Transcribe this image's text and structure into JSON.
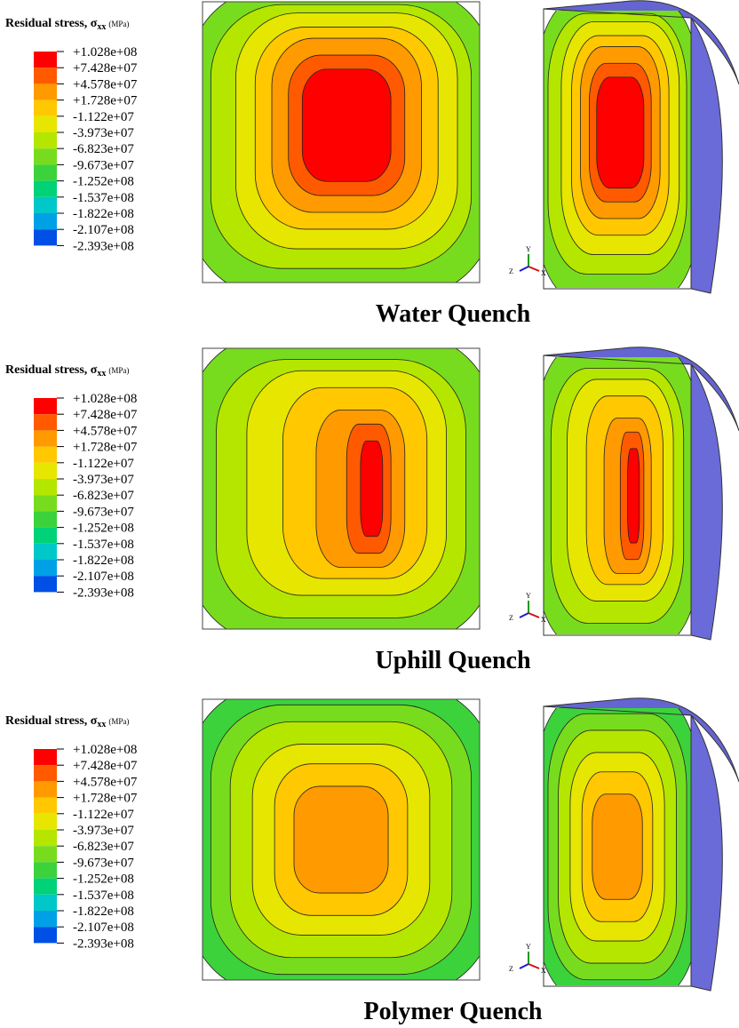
{
  "legend_colors": [
    "#ff0000",
    "#ff5a00",
    "#ff9a00",
    "#ffc800",
    "#e6e600",
    "#b4e600",
    "#78dc1e",
    "#3cd23c",
    "#00d278",
    "#00c8c8",
    "#00a0e6",
    "#0050e6",
    "#0000ff"
  ],
  "panels": [
    {
      "legend": {
        "title": "Residual stress, σ",
        "subscript": "xx",
        "unit": "(MPa)",
        "labels": [
          "+1.028e+08",
          "+7.428e+07",
          "+4.578e+07",
          "+1.728e+07",
          "-1.122e+07",
          "-3.973e+07",
          "-6.823e+07",
          "-9.673e+07",
          "-1.252e+08",
          "-1.537e+08",
          "-1.822e+08",
          "-2.107e+08",
          "-2.393e+08"
        ]
      },
      "axes": {
        "y": "Y",
        "z": "Z",
        "x": "X"
      },
      "caption": "Water Quench"
    },
    {
      "legend": {
        "title": "Residual stress, σ",
        "subscript": "xx",
        "unit": "(MPa)",
        "labels": [
          "+1.028e+08",
          "+7.428e+07",
          "+4.578e+07",
          "+1.728e+07",
          "-1.122e+07",
          "-3.973e+07",
          "-6.823e+07",
          "-9.673e+07",
          "-1.252e+08",
          "-1.537e+08",
          "-1.822e+08",
          "-2.107e+08",
          "-2.393e+08"
        ]
      },
      "axes": {
        "y": "Y",
        "z": "Z",
        "x": "X"
      },
      "caption": "Uphill Quench"
    },
    {
      "legend": {
        "title": "Residual stress, σ",
        "subscript": "xx",
        "unit": "(MPa)",
        "labels": [
          "+1.028e+08",
          "+7.428e+07",
          "+4.578e+07",
          "+1.728e+07",
          "-1.122e+07",
          "-3.973e+07",
          "-6.823e+07",
          "-9.673e+07",
          "-1.252e+08",
          "-1.537e+08",
          "-1.822e+08",
          "-2.107e+08",
          "-2.393e+08"
        ]
      },
      "axes": {
        "y": "Y",
        "z": "Z",
        "x": "X"
      },
      "caption": "Polymer Quench"
    }
  ]
}
